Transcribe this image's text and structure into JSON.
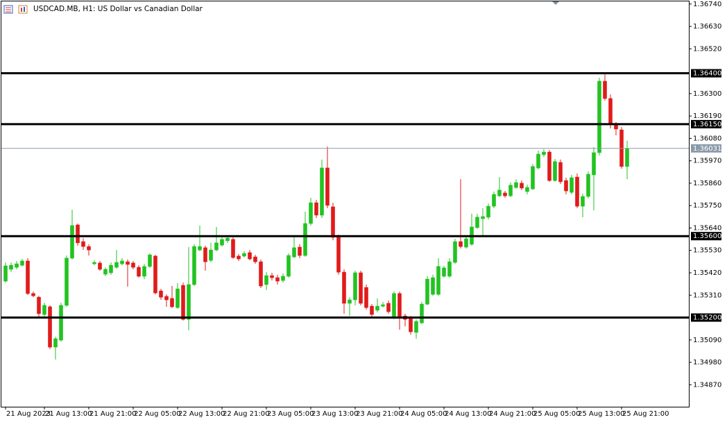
{
  "chart_data": {
    "type": "candlestick",
    "title": "USDCAD.MB, H1:  US Dollar vs Canadian Dollar",
    "up_color": "#22c322",
    "down_color": "#e01b1b",
    "categories": [
      "21 Aug 2023",
      null,
      null,
      null,
      null,
      null,
      null,
      "21 Aug 13:00",
      null,
      null,
      null,
      null,
      null,
      null,
      null,
      "21 Aug 21:00",
      null,
      null,
      null,
      null,
      null,
      null,
      null,
      "22 Aug 05:00",
      null,
      null,
      null,
      null,
      null,
      null,
      null,
      "22 Aug 13:00",
      null,
      null,
      null,
      null,
      null,
      null,
      null,
      "22 Aug 21:00",
      null,
      null,
      null,
      null,
      null,
      null,
      null,
      "23 Aug 05:00",
      null,
      null,
      null,
      null,
      null,
      null,
      null,
      "23 Aug 13:00",
      null,
      null,
      null,
      null,
      null,
      null,
      null,
      "23 Aug 21:00",
      null,
      null,
      null,
      null,
      null,
      null,
      null,
      "24 Aug 05:00",
      null,
      null,
      null,
      null,
      null,
      null,
      null,
      "24 Aug 13:00",
      null,
      null,
      null,
      null,
      null,
      null,
      null,
      "24 Aug 21:00",
      null,
      null,
      null,
      null,
      null,
      null,
      null,
      "25 Aug 05:00",
      null,
      null,
      null,
      null,
      null,
      null,
      null,
      "25 Aug 13:00",
      null,
      null,
      null,
      null,
      null,
      null,
      null,
      "25 Aug 21:00",
      null
    ],
    "open": [
      1.35379,
      1.35437,
      1.35447,
      1.35457,
      1.35478,
      1.35318,
      1.353,
      1.35215,
      1.35253,
      1.35055,
      1.35089,
      1.3526,
      1.35492,
      1.35655,
      1.35573,
      1.35549,
      1.35464,
      1.35468,
      1.35413,
      1.3542,
      1.35447,
      1.35464,
      1.35474,
      1.35468,
      1.35447,
      1.35403,
      1.35451,
      1.35502,
      1.35331,
      1.35304,
      1.35294,
      1.35249,
      1.35358,
      1.35191,
      1.35362,
      1.35532,
      1.35543,
      1.35481,
      1.35532,
      1.35556,
      1.35577,
      1.35584,
      1.35502,
      1.35502,
      1.35519,
      1.35498,
      1.35474,
      1.35362,
      1.35406,
      1.35396,
      1.35382,
      1.35403,
      1.35498,
      1.35546,
      1.35505,
      1.35662,
      1.35764,
      1.35703,
      1.35935,
      1.35744,
      1.35594,
      1.35423,
      1.3527,
      1.35287,
      1.3542,
      1.35348,
      1.35256,
      1.35236,
      1.35256,
      1.3527,
      1.35205,
      1.35318,
      1.35208,
      1.35202,
      1.35127,
      1.35174,
      1.35266,
      1.35314,
      1.35314,
      1.35403,
      1.35403,
      1.35471,
      1.35573,
      1.35546,
      1.3556,
      1.35642,
      1.35686,
      1.35693,
      1.35747,
      1.35798,
      1.35812,
      1.35798,
      1.35839,
      1.3586,
      1.35819,
      1.35832,
      1.35935,
      1.36,
      1.36013,
      1.35873,
      1.35962,
      1.35873,
      1.35815,
      1.3589,
      1.35747,
      1.35795,
      1.35901,
      1.3601,
      1.36361,
      1.36276,
      1.36153,
      1.36122,
      1.35942
    ],
    "high": [
      1.35471,
      1.35471,
      1.35478,
      1.35488,
      1.35492,
      1.35328,
      1.35307,
      1.35273,
      1.3526,
      1.35106,
      1.35273,
      1.35505,
      1.3573,
      1.35662,
      1.3559,
      1.3556,
      1.35481,
      1.35478,
      1.35447,
      1.35471,
      1.35532,
      1.35492,
      1.35485,
      1.35478,
      1.35457,
      1.35464,
      1.35515,
      1.35508,
      1.35341,
      1.35314,
      1.35355,
      1.35369,
      1.35372,
      1.35546,
      1.3556,
      1.35652,
      1.35553,
      1.35567,
      1.35645,
      1.35601,
      1.35601,
      1.35594,
      1.35512,
      1.35526,
      1.35532,
      1.35508,
      1.35485,
      1.35423,
      1.3542,
      1.3541,
      1.35417,
      1.35515,
      1.35601,
      1.3556,
      1.3572,
      1.35788,
      1.35778,
      1.35976,
      1.3604,
      1.35764,
      1.35607,
      1.35437,
      1.353,
      1.3543,
      1.3543,
      1.35362,
      1.35266,
      1.35294,
      1.35277,
      1.35284,
      1.35328,
      1.35328,
      1.35219,
      1.35208,
      1.35191,
      1.35277,
      1.35403,
      1.3541,
      1.35492,
      1.35454,
      1.35492,
      1.35587,
      1.3588,
      1.35601,
      1.3571,
      1.3571,
      1.35737,
      1.35761,
      1.35819,
      1.3589,
      1.35822,
      1.35863,
      1.3588,
      1.35873,
      1.35853,
      1.35955,
      1.3602,
      1.36027,
      1.36023,
      1.35979,
      1.35976,
      1.35887,
      1.35901,
      1.35908,
      1.35809,
      1.35918,
      1.36037,
      1.36378,
      1.36395,
      1.36296,
      1.3616,
      1.36136,
      1.36068
    ],
    "low": [
      1.35372,
      1.35423,
      1.35437,
      1.35451,
      1.35311,
      1.353,
      1.35205,
      1.35198,
      1.35045,
      1.34994,
      1.35082,
      1.35253,
      1.35485,
      1.35553,
      1.35532,
      1.35505,
      1.35457,
      1.3543,
      1.35403,
      1.3541,
      1.3544,
      1.35457,
      1.35352,
      1.35437,
      1.35396,
      1.35389,
      1.35444,
      1.35314,
      1.35287,
      1.35253,
      1.35246,
      1.35243,
      1.35185,
      1.35137,
      1.35355,
      1.35526,
      1.3543,
      1.35471,
      1.35526,
      1.35549,
      1.35567,
      1.35488,
      1.35478,
      1.35495,
      1.35481,
      1.35464,
      1.35345,
      1.35335,
      1.35382,
      1.35362,
      1.35372,
      1.35396,
      1.35492,
      1.35492,
      1.35498,
      1.35652,
      1.35689,
      1.35689,
      1.35737,
      1.3558,
      1.3541,
      1.35219,
      1.35208,
      1.3526,
      1.3526,
      1.35239,
      1.35205,
      1.35225,
      1.35249,
      1.35219,
      1.35191,
      1.3514,
      1.35157,
      1.35116,
      1.35096,
      1.35168,
      1.3526,
      1.35307,
      1.35307,
      1.35396,
      1.35396,
      1.35464,
      1.35539,
      1.35539,
      1.35553,
      1.35635,
      1.35601,
      1.35682,
      1.35737,
      1.35792,
      1.35788,
      1.35792,
      1.35832,
      1.35826,
      1.35805,
      1.35826,
      1.35928,
      1.35989,
      1.35867,
      1.35867,
      1.35856,
      1.35805,
      1.35805,
      1.35737,
      1.35693,
      1.35785,
      1.35727,
      1.35996,
      1.36266,
      1.36129,
      1.36095,
      1.35931,
      1.3588
    ],
    "close": [
      1.35454,
      1.35457,
      1.35464,
      1.35478,
      1.35318,
      1.35307,
      1.35219,
      1.3526,
      1.35055,
      1.35096,
      1.3526,
      1.35492,
      1.35652,
      1.35567,
      1.35549,
      1.35532,
      1.35471,
      1.35437,
      1.35437,
      1.35457,
      1.35471,
      1.35478,
      1.35461,
      1.35447,
      1.35403,
      1.35451,
      1.35508,
      1.35321,
      1.353,
      1.35287,
      1.35253,
      1.35341,
      1.35191,
      1.35362,
      1.35549,
      1.35549,
      1.35474,
      1.35532,
      1.35567,
      1.35584,
      1.3559,
      1.35495,
      1.35488,
      1.35515,
      1.35488,
      1.35474,
      1.35355,
      1.35406,
      1.35396,
      1.35379,
      1.35403,
      1.35505,
      1.35543,
      1.35505,
      1.35662,
      1.35764,
      1.35703,
      1.35935,
      1.35751,
      1.35594,
      1.35423,
      1.3527,
      1.35287,
      1.3542,
      1.3527,
      1.35249,
      1.35215,
      1.35256,
      1.35263,
      1.35229,
      1.35318,
      1.35202,
      1.35191,
      1.3513,
      1.35181,
      1.35266,
      1.35389,
      1.35396,
      1.35451,
      1.35444,
      1.35474,
      1.35573,
      1.35549,
      1.35587,
      1.35645,
      1.35693,
      1.35696,
      1.35747,
      1.35805,
      1.35826,
      1.35798,
      1.3585,
      1.35863,
      1.35836,
      1.35839,
      1.35942,
      1.36003,
      1.36013,
      1.35873,
      1.35966,
      1.35867,
      1.35822,
      1.35887,
      1.35747,
      1.35795,
      1.35904,
      1.3601,
      1.36361,
      1.36276,
      1.36153,
      1.36126,
      1.35942,
      1.36031
    ],
    "ylim": [
      1.34762,
      1.36753
    ],
    "yticks": [
      {
        "value": 1.3674,
        "label": "1.36740"
      },
      {
        "value": 1.3663,
        "label": "1.36630"
      },
      {
        "value": 1.3652,
        "label": "1.36520"
      },
      {
        "value": 1.363,
        "label": "1.36300"
      },
      {
        "value": 1.3619,
        "label": "1.36190"
      },
      {
        "value": 1.3608,
        "label": "1.36080"
      },
      {
        "value": 1.3597,
        "label": "1.35970"
      },
      {
        "value": 1.3586,
        "label": "1.35860"
      },
      {
        "value": 1.3575,
        "label": "1.35750"
      },
      {
        "value": 1.3564,
        "label": "1.35640"
      },
      {
        "value": 1.3553,
        "label": "1.35530"
      },
      {
        "value": 1.3542,
        "label": "1.35420"
      },
      {
        "value": 1.3531,
        "label": "1.35310"
      },
      {
        "value": 1.3509,
        "label": "1.35090"
      },
      {
        "value": 1.3498,
        "label": "1.34980"
      },
      {
        "value": 1.3487,
        "label": "1.34870"
      }
    ],
    "levels": [
      {
        "value": 1.364,
        "label": "1.36400"
      },
      {
        "value": 1.3615,
        "label": "1.36150"
      },
      {
        "value": 1.356,
        "label": "1.35600"
      },
      {
        "value": 1.352,
        "label": "1.35200"
      }
    ],
    "level_color": "#000000",
    "current_price": 1.36031,
    "current_price_color": "#8a9aaa"
  }
}
